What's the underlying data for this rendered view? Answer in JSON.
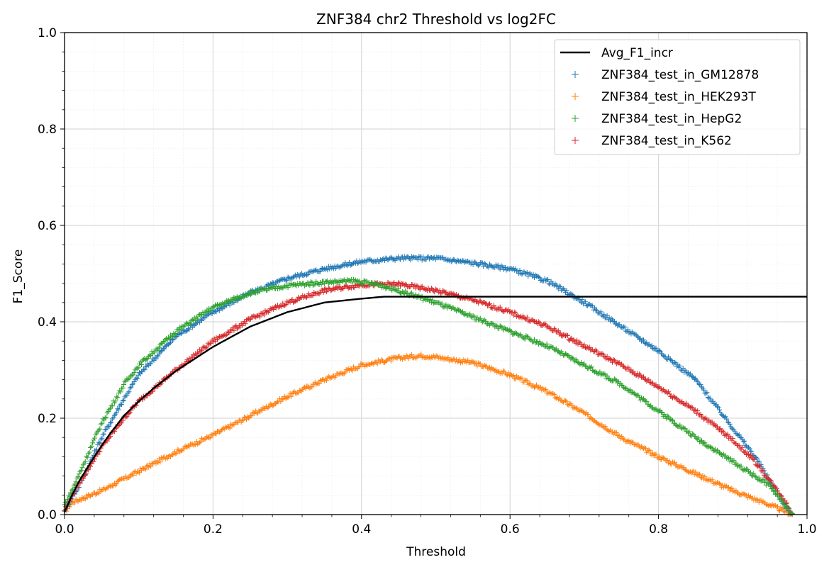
{
  "chart_data": {
    "type": "line",
    "title": "ZNF384 chr2 Threshold vs log2FC",
    "xlabel": "Threshold",
    "ylabel": "F1_Score",
    "xlim": [
      0,
      1
    ],
    "ylim": [
      0,
      1
    ],
    "x_ticks": [
      "0.0",
      "0.2",
      "0.4",
      "0.6",
      "0.8",
      "1.0"
    ],
    "y_ticks": [
      "0.0",
      "0.2",
      "0.4",
      "0.6",
      "0.8",
      "1.0"
    ],
    "grid": "on (major and minor)",
    "legend_position": "top-right",
    "series": [
      {
        "name": "Avg_F1_incr",
        "style": "line",
        "color": "#000000",
        "x": [
          0,
          0.01,
          0.02,
          0.04,
          0.06,
          0.08,
          0.1,
          0.12,
          0.15,
          0.2,
          0.25,
          0.3,
          0.35,
          0.4,
          0.43,
          0.45,
          0.5,
          0.6,
          0.7,
          0.8,
          0.9,
          1.0
        ],
        "y": [
          0.005,
          0.04,
          0.07,
          0.12,
          0.165,
          0.205,
          0.235,
          0.262,
          0.298,
          0.348,
          0.39,
          0.42,
          0.44,
          0.448,
          0.452,
          0.452,
          0.452,
          0.452,
          0.452,
          0.452,
          0.452,
          0.452
        ]
      },
      {
        "name": "ZNF384_test_in_GM12878",
        "style": "plus-markers",
        "color": "#1f77b4",
        "x": [
          0,
          0.02,
          0.05,
          0.08,
          0.1,
          0.15,
          0.2,
          0.25,
          0.3,
          0.35,
          0.4,
          0.45,
          0.5,
          0.55,
          0.6,
          0.65,
          0.7,
          0.75,
          0.8,
          0.85,
          0.9,
          0.93,
          0.95,
          0.97,
          0.98
        ],
        "y": [
          0.01,
          0.06,
          0.16,
          0.24,
          0.29,
          0.37,
          0.42,
          0.46,
          0.49,
          0.51,
          0.525,
          0.532,
          0.532,
          0.522,
          0.51,
          0.485,
          0.44,
          0.39,
          0.34,
          0.28,
          0.18,
          0.12,
          0.07,
          0.02,
          0.0
        ]
      },
      {
        "name": "ZNF384_test_in_HEK293T",
        "style": "plus-markers",
        "color": "#ff7f0e",
        "x": [
          0,
          0.01,
          0.05,
          0.1,
          0.15,
          0.2,
          0.25,
          0.3,
          0.35,
          0.4,
          0.45,
          0.48,
          0.5,
          0.55,
          0.6,
          0.65,
          0.7,
          0.75,
          0.8,
          0.85,
          0.9,
          0.95,
          0.98
        ],
        "y": [
          0.005,
          0.025,
          0.05,
          0.09,
          0.13,
          0.165,
          0.205,
          0.245,
          0.28,
          0.31,
          0.325,
          0.33,
          0.327,
          0.315,
          0.29,
          0.255,
          0.21,
          0.16,
          0.12,
          0.085,
          0.05,
          0.02,
          0.0
        ]
      },
      {
        "name": "ZNF384_test_in_HepG2",
        "style": "plus-markers",
        "color": "#2ca02c",
        "x": [
          0,
          0.01,
          0.03,
          0.05,
          0.08,
          0.1,
          0.15,
          0.2,
          0.25,
          0.3,
          0.35,
          0.39,
          0.42,
          0.45,
          0.5,
          0.55,
          0.6,
          0.65,
          0.7,
          0.75,
          0.8,
          0.85,
          0.9,
          0.95,
          0.97,
          0.98
        ],
        "y": [
          0.02,
          0.05,
          0.12,
          0.19,
          0.27,
          0.31,
          0.38,
          0.43,
          0.46,
          0.475,
          0.482,
          0.485,
          0.478,
          0.465,
          0.44,
          0.41,
          0.38,
          0.35,
          0.31,
          0.27,
          0.215,
          0.16,
          0.11,
          0.06,
          0.02,
          0.0
        ]
      },
      {
        "name": "ZNF384_test_in_K562",
        "style": "plus-markers",
        "color": "#d62728",
        "x": [
          0,
          0.01,
          0.03,
          0.05,
          0.08,
          0.1,
          0.15,
          0.2,
          0.25,
          0.3,
          0.35,
          0.4,
          0.45,
          0.5,
          0.55,
          0.6,
          0.65,
          0.7,
          0.75,
          0.8,
          0.85,
          0.9,
          0.93,
          0.95,
          0.97,
          0.98
        ],
        "y": [
          0.01,
          0.04,
          0.09,
          0.14,
          0.2,
          0.235,
          0.3,
          0.36,
          0.405,
          0.44,
          0.465,
          0.477,
          0.478,
          0.465,
          0.445,
          0.42,
          0.39,
          0.35,
          0.31,
          0.265,
          0.215,
          0.155,
          0.11,
          0.07,
          0.03,
          0.0
        ]
      }
    ]
  }
}
